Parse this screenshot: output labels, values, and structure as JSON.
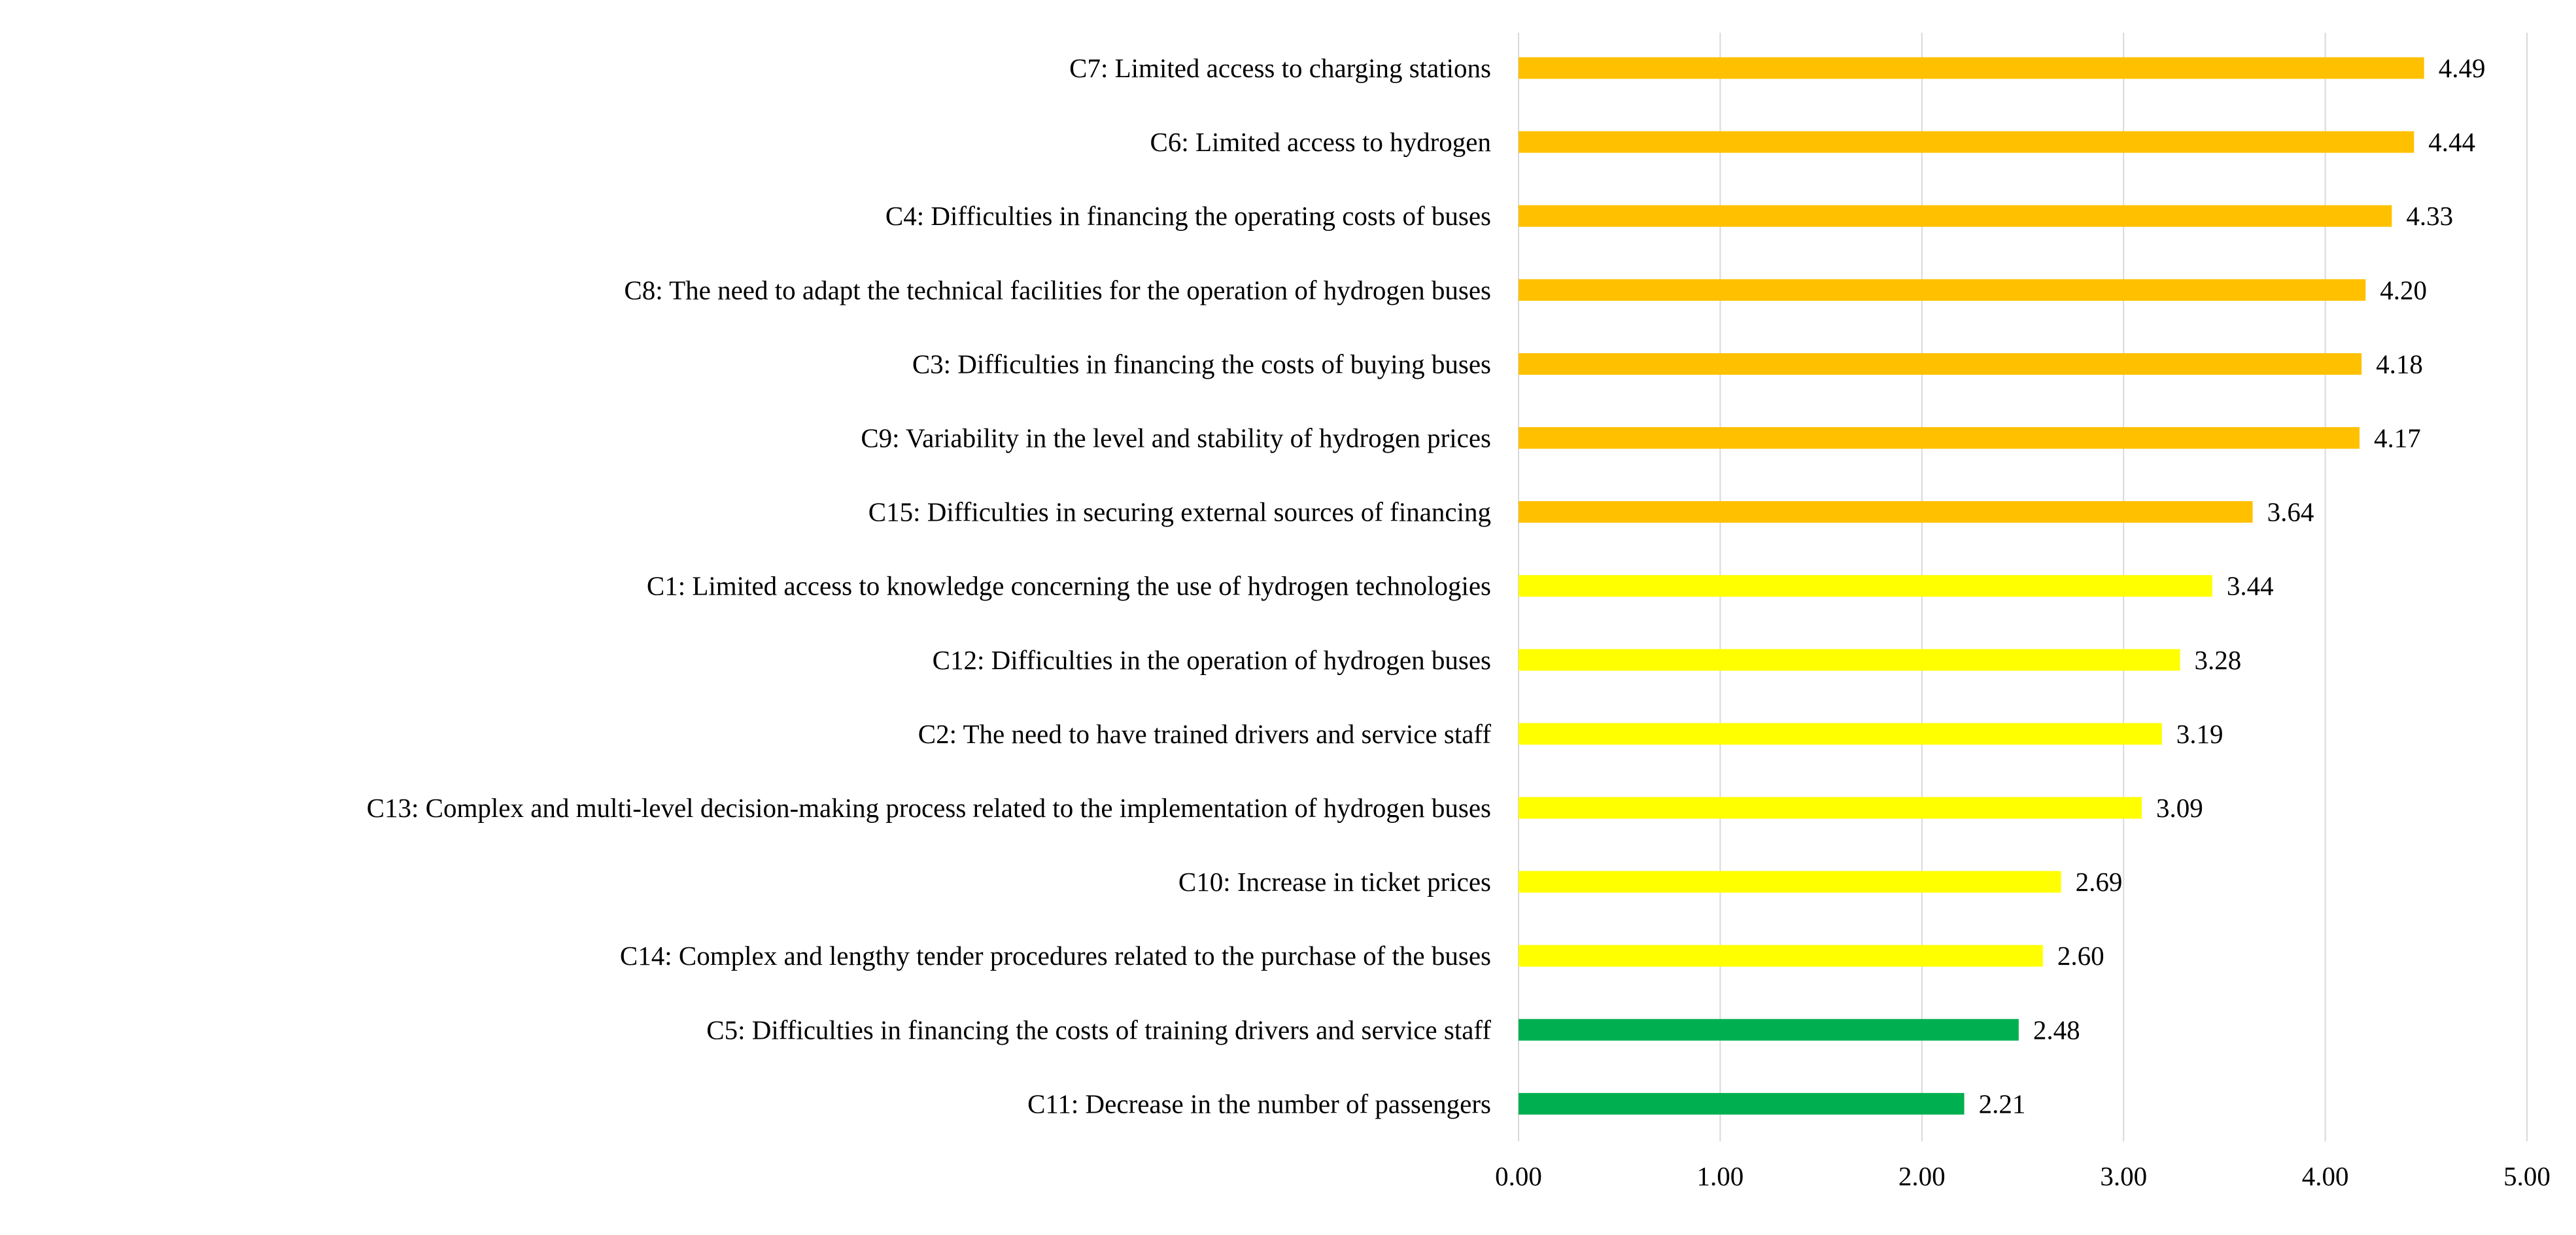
{
  "chart_data": {
    "type": "bar",
    "orientation": "horizontal",
    "title": "",
    "xlabel": "",
    "ylabel": "",
    "xlim": [
      0,
      5
    ],
    "grid": true,
    "legend": "none",
    "categories": [
      "C7: Limited access to charging stations",
      "C6: Limited access to hydrogen",
      "C4: Difficulties in financing the operating costs of buses",
      "C8: The need to adapt the technical facilities for the operation of hydrogen buses",
      "C3: Difficulties in financing the costs of buying buses",
      "C9: Variability in the level and stability of hydrogen prices",
      "C15: Difficulties in securing external sources of financing",
      "C1: Limited access to knowledge concerning the use of hydrogen technologies",
      "C12: Difficulties in the operation of hydrogen buses",
      "C2: The need to have trained drivers and service staff",
      "C13: Complex and multi-level decision-making process related to the implementation of hydrogen buses",
      "C10: Increase in ticket prices",
      "C14: Complex and lengthy tender procedures related to the purchase of the buses",
      "C5: Difficulties in financing the costs of training drivers and service staff",
      "C11: Decrease in the number of passengers"
    ],
    "values": [
      4.49,
      4.44,
      4.33,
      4.2,
      4.18,
      4.17,
      3.64,
      3.44,
      3.28,
      3.19,
      3.09,
      2.69,
      2.6,
      2.48,
      2.21
    ],
    "value_labels": [
      "4.49",
      "4.44",
      "4.33",
      "4.20",
      "4.18",
      "4.17",
      "3.64",
      "3.44",
      "3.28",
      "3.19",
      "3.09",
      "2.69",
      "2.60",
      "2.48",
      "2.21"
    ],
    "bar_colors": [
      "#FFC000",
      "#FFC000",
      "#FFC000",
      "#FFC000",
      "#FFC000",
      "#FFC000",
      "#FFC000",
      "#FFFF00",
      "#FFFF00",
      "#FFFF00",
      "#FFFF00",
      "#FFFF00",
      "#FFFF00",
      "#00B050",
      "#00B050"
    ],
    "x_ticks": [
      0,
      1,
      2,
      3,
      4,
      5
    ],
    "x_tick_labels": [
      "0.00",
      "1.00",
      "2.00",
      "3.00",
      "4.00",
      "5.00"
    ]
  }
}
